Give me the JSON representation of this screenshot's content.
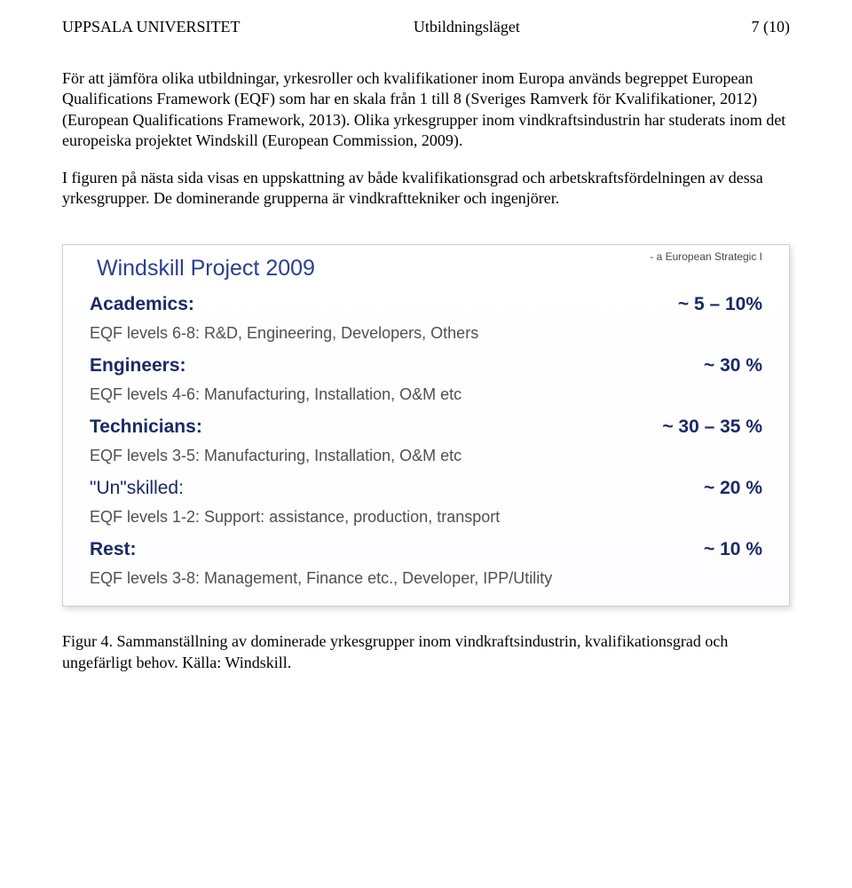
{
  "header": {
    "left": "UPPSALA UNIVERSITET",
    "mid": "Utbildningsläget",
    "right": "7 (10)"
  },
  "paragraphs": [
    "För att jämföra olika utbildningar, yrkesroller och kvalifikationer inom Europa används begreppet European Qualifications Framework (EQF) som har en skala från 1 till 8 (Sveriges Ramverk för Kvalifikationer, 2012) (European Qualifications Framework, 2013). Olika yrkesgrupper inom vindkraftsindustrin har studerats inom det europeiska projektet Windskill (European Commission, 2009).",
    "I figuren på nästa sida visas en uppskattning av både kvalifikationsgrad och arbetskraftsfördelningen av dessa yrkesgrupper. De dominerande grupperna är vindkrafttekniker och ingenjörer."
  ],
  "figure": {
    "title": "Windskill Project 2009",
    "tag": "- a European Strategic I",
    "groups": [
      {
        "name": "Academics:",
        "pct": "~ 5 – 10%",
        "desc": "EQF levels 6-8: R&D, Engineering, Developers, Others",
        "cls": ""
      },
      {
        "name": "Engineers:",
        "pct": "~  30 %",
        "desc": "EQF levels 4-6: Manufacturing, Installation, O&M etc",
        "cls": ""
      },
      {
        "name": "Technicians:",
        "pct": "~ 30 – 35 %",
        "desc": "EQF levels 3-5: Manufacturing, Installation, O&M etc",
        "cls": ""
      },
      {
        "name": "\"Un\"skilled:",
        "pct": "~  20 %",
        "desc": "EQF levels 1-2: Support: assistance, production, transport",
        "cls": "unskilled"
      },
      {
        "name": "Rest:",
        "pct": "~  10 %",
        "desc": "EQF levels 3-8: Management, Finance etc., Developer, IPP/Utility",
        "cls": ""
      }
    ]
  },
  "caption": "Figur 4. Sammanställning av dominerade yrkesgrupper inom vindkraftsindustrin, kvalifikationsgrad och ungefärligt behov. Källa: Windskill."
}
